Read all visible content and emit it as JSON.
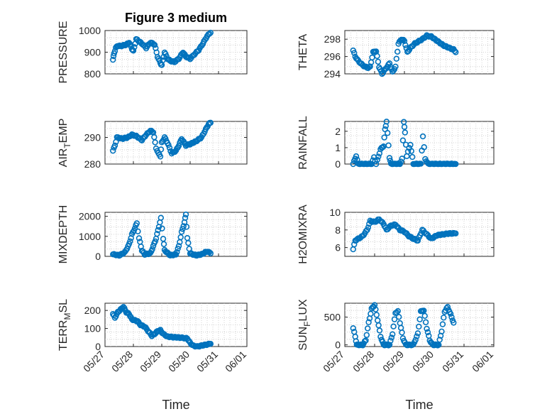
{
  "colors": {
    "marker": "#0072BD",
    "axis": "#262626",
    "grid": "#c8c8c8"
  },
  "chart_data": [
    {
      "type": "scatter",
      "title": "Figure 3 medium",
      "ylabel": "PRESSURE",
      "ylim": [
        800,
        1000
      ],
      "yticks": [
        "800",
        "900",
        "1000"
      ],
      "yticks_v": [
        800,
        900,
        1000
      ],
      "xlim": [
        0,
        5
      ],
      "xticks": [],
      "xlabel": "",
      "grid": true,
      "knots": [
        [
          0.28,
          865
        ],
        [
          0.32,
          895
        ],
        [
          0.38,
          920
        ],
        [
          0.45,
          930
        ],
        [
          0.55,
          928
        ],
        [
          0.75,
          935
        ],
        [
          0.85,
          945
        ],
        [
          0.95,
          915
        ],
        [
          1.0,
          905
        ],
        [
          1.1,
          960
        ],
        [
          1.3,
          940
        ],
        [
          1.45,
          920
        ],
        [
          1.6,
          945
        ],
        [
          1.75,
          935
        ],
        [
          1.85,
          880
        ],
        [
          1.95,
          850
        ],
        [
          2.0,
          840
        ],
        [
          2.1,
          900
        ],
        [
          2.2,
          870
        ],
        [
          2.3,
          860
        ],
        [
          2.45,
          855
        ],
        [
          2.6,
          870
        ],
        [
          2.75,
          900
        ],
        [
          2.85,
          880
        ],
        [
          3.0,
          870
        ],
        [
          3.15,
          890
        ],
        [
          3.3,
          910
        ],
        [
          3.45,
          940
        ],
        [
          3.6,
          975
        ],
        [
          3.72,
          990
        ]
      ]
    },
    {
      "type": "scatter",
      "title": "",
      "ylabel": "THETA",
      "ylim": [
        294,
        299
      ],
      "yticks": [
        "294",
        "296",
        "298"
      ],
      "yticks_v": [
        294,
        296,
        298
      ],
      "xlim": [
        0,
        5
      ],
      "xticks": [],
      "xlabel": "",
      "grid": true,
      "knots": [
        [
          0.28,
          296.7
        ],
        [
          0.35,
          296.0
        ],
        [
          0.45,
          295.5
        ],
        [
          0.6,
          295.0
        ],
        [
          0.75,
          294.7
        ],
        [
          0.85,
          294.8
        ],
        [
          0.95,
          296.5
        ],
        [
          1.05,
          296.6
        ],
        [
          1.15,
          294.8
        ],
        [
          1.25,
          294.0
        ],
        [
          1.35,
          294.5
        ],
        [
          1.5,
          295.2
        ],
        [
          1.6,
          294.2
        ],
        [
          1.7,
          294.8
        ],
        [
          1.8,
          297.5
        ],
        [
          1.9,
          298.0
        ],
        [
          2.0,
          297.8
        ],
        [
          2.1,
          296.5
        ],
        [
          2.2,
          297.0
        ],
        [
          2.35,
          297.5
        ],
        [
          2.6,
          298.0
        ],
        [
          2.75,
          298.4
        ],
        [
          2.9,
          298.3
        ],
        [
          3.1,
          297.8
        ],
        [
          3.3,
          297.3
        ],
        [
          3.5,
          297.0
        ],
        [
          3.65,
          296.8
        ],
        [
          3.72,
          296.5
        ]
      ]
    },
    {
      "type": "scatter",
      "title": "",
      "ylabel": "AIR_TEMP",
      "ylim": [
        280,
        296
      ],
      "yticks": [
        "280",
        "290"
      ],
      "yticks_v": [
        280,
        290
      ],
      "xlim": [
        0,
        5
      ],
      "xticks": [],
      "xlabel": "",
      "grid": true,
      "knots": [
        [
          0.28,
          285
        ],
        [
          0.35,
          287
        ],
        [
          0.42,
          290
        ],
        [
          0.6,
          289.5
        ],
        [
          0.8,
          290
        ],
        [
          0.95,
          291
        ],
        [
          1.1,
          290.5
        ],
        [
          1.3,
          289
        ],
        [
          1.45,
          291
        ],
        [
          1.6,
          292.5
        ],
        [
          1.7,
          292.0
        ],
        [
          1.8,
          286
        ],
        [
          1.88,
          284
        ],
        [
          1.95,
          283
        ],
        [
          2.0,
          288
        ],
        [
          2.1,
          290
        ],
        [
          2.2,
          288
        ],
        [
          2.35,
          284
        ],
        [
          2.5,
          285
        ],
        [
          2.6,
          287
        ],
        [
          2.7,
          289.5
        ],
        [
          2.85,
          287
        ],
        [
          3.0,
          287.5
        ],
        [
          3.2,
          288.5
        ],
        [
          3.4,
          290
        ],
        [
          3.55,
          293
        ],
        [
          3.65,
          295
        ],
        [
          3.72,
          295.5
        ]
      ]
    },
    {
      "type": "scatter",
      "title": "",
      "ylabel": "RAINFALL",
      "ylim": [
        0,
        2.6
      ],
      "yticks": [
        "0",
        "1",
        "2"
      ],
      "yticks_v": [
        0,
        1,
        2
      ],
      "xlim": [
        0,
        5
      ],
      "xticks": [],
      "xlabel": "",
      "grid": true,
      "knots": [
        [
          0.28,
          0
        ],
        [
          0.38,
          0.5
        ],
        [
          0.45,
          0
        ],
        [
          0.9,
          0
        ],
        [
          0.98,
          0.4
        ],
        [
          1.05,
          0
        ],
        [
          1.2,
          0.9
        ],
        [
          1.3,
          1.1
        ],
        [
          1.35,
          2.1
        ],
        [
          1.4,
          2.6
        ],
        [
          1.5,
          0.4
        ],
        [
          1.55,
          0
        ],
        [
          1.85,
          0
        ],
        [
          1.92,
          0.3
        ],
        [
          1.98,
          2.6
        ],
        [
          2.02,
          1.9
        ],
        [
          2.08,
          0.5
        ],
        [
          2.2,
          1.2
        ],
        [
          2.3,
          0
        ],
        [
          2.55,
          0
        ],
        [
          2.62,
          1.7
        ],
        [
          2.7,
          0.3
        ],
        [
          2.8,
          0
        ],
        [
          3.72,
          0
        ]
      ]
    },
    {
      "type": "scatter",
      "title": "",
      "ylabel": "MIXDEPTH",
      "ylim": [
        0,
        2200
      ],
      "yticks": [
        "0",
        "1000",
        "2000"
      ],
      "yticks_v": [
        0,
        1000,
        2000
      ],
      "xlim": [
        0,
        5
      ],
      "xticks": [],
      "xlabel": "",
      "grid": true,
      "knots": [
        [
          0.28,
          100
        ],
        [
          0.5,
          50
        ],
        [
          0.7,
          200
        ],
        [
          0.85,
          600
        ],
        [
          0.95,
          1100
        ],
        [
          1.05,
          1400
        ],
        [
          1.12,
          1650
        ],
        [
          1.2,
          900
        ],
        [
          1.3,
          300
        ],
        [
          1.4,
          100
        ],
        [
          1.6,
          150
        ],
        [
          1.7,
          500
        ],
        [
          1.8,
          900
        ],
        [
          1.9,
          1500
        ],
        [
          1.97,
          1900
        ],
        [
          2.05,
          900
        ],
        [
          2.1,
          300
        ],
        [
          2.3,
          50
        ],
        [
          2.5,
          100
        ],
        [
          2.6,
          500
        ],
        [
          2.7,
          1200
        ],
        [
          2.8,
          1700
        ],
        [
          2.85,
          2100
        ],
        [
          2.9,
          900
        ],
        [
          3.0,
          150
        ],
        [
          3.2,
          50
        ],
        [
          3.4,
          100
        ],
        [
          3.6,
          250
        ],
        [
          3.72,
          150
        ]
      ]
    },
    {
      "type": "scatter",
      "title": "",
      "ylabel": "H2OMIXRA",
      "ylim": [
        5,
        10
      ],
      "yticks": [
        "6",
        "8",
        "10"
      ],
      "yticks_v": [
        6,
        8,
        10
      ],
      "xlim": [
        0,
        5
      ],
      "xticks": [],
      "xlabel": "",
      "grid": true,
      "knots": [
        [
          0.28,
          5.8
        ],
        [
          0.35,
          6.8
        ],
        [
          0.45,
          7.0
        ],
        [
          0.6,
          7.3
        ],
        [
          0.75,
          8.0
        ],
        [
          0.85,
          9.0
        ],
        [
          1.0,
          8.9
        ],
        [
          1.15,
          9.2
        ],
        [
          1.3,
          8.7
        ],
        [
          1.4,
          8.0
        ],
        [
          1.55,
          8.5
        ],
        [
          1.7,
          8.6
        ],
        [
          1.85,
          8.0
        ],
        [
          2.0,
          7.8
        ],
        [
          2.15,
          7.3
        ],
        [
          2.3,
          7.0
        ],
        [
          2.45,
          6.8
        ],
        [
          2.6,
          8.0
        ],
        [
          2.75,
          7.5
        ],
        [
          2.9,
          7.0
        ],
        [
          3.1,
          7.4
        ],
        [
          3.3,
          7.5
        ],
        [
          3.5,
          7.6
        ],
        [
          3.72,
          7.6
        ]
      ]
    },
    {
      "type": "scatter",
      "title": "",
      "ylabel": "TERR_MSL",
      "ylim": [
        0,
        240
      ],
      "yticks": [
        "0",
        "100",
        "200"
      ],
      "yticks_v": [
        0,
        100,
        200
      ],
      "xlim": [
        0,
        5
      ],
      "xticks": [
        "05/27",
        "05/28",
        "05/29",
        "05/30",
        "05/31",
        "06/01"
      ],
      "xticks_v": [
        0,
        1,
        2,
        3,
        4,
        5
      ],
      "xlabel": "Time",
      "grid": true,
      "knots": [
        [
          0.28,
          180
        ],
        [
          0.35,
          160
        ],
        [
          0.45,
          190
        ],
        [
          0.55,
          205
        ],
        [
          0.65,
          220
        ],
        [
          0.75,
          190
        ],
        [
          0.85,
          180
        ],
        [
          0.95,
          150
        ],
        [
          1.05,
          145
        ],
        [
          1.15,
          140
        ],
        [
          1.25,
          120
        ],
        [
          1.4,
          110
        ],
        [
          1.55,
          80
        ],
        [
          1.65,
          60
        ],
        [
          1.75,
          70
        ],
        [
          1.85,
          85
        ],
        [
          1.95,
          90
        ],
        [
          2.05,
          70
        ],
        [
          2.2,
          55
        ],
        [
          2.4,
          52
        ],
        [
          2.6,
          50
        ],
        [
          2.75,
          48
        ],
        [
          2.9,
          45
        ],
        [
          3.0,
          20
        ],
        [
          3.1,
          5
        ],
        [
          3.25,
          0
        ],
        [
          3.4,
          5
        ],
        [
          3.55,
          10
        ],
        [
          3.72,
          15
        ]
      ]
    },
    {
      "type": "scatter",
      "title": "",
      "ylabel": "SUN_FLUX",
      "ylim": [
        -30,
        750
      ],
      "yticks": [
        "0",
        "500"
      ],
      "yticks_v": [
        0,
        500
      ],
      "xlim": [
        0,
        5
      ],
      "xticks": [
        "05/27",
        "05/28",
        "05/29",
        "05/30",
        "05/31",
        "06/01"
      ],
      "xticks_v": [
        0,
        1,
        2,
        3,
        4,
        5
      ],
      "xlabel": "Time",
      "grid": true,
      "knots": [
        [
          0.28,
          300
        ],
        [
          0.35,
          150
        ],
        [
          0.4,
          0
        ],
        [
          0.6,
          0
        ],
        [
          0.7,
          80
        ],
        [
          0.8,
          400
        ],
        [
          0.9,
          650
        ],
        [
          1.0,
          720
        ],
        [
          1.1,
          450
        ],
        [
          1.2,
          150
        ],
        [
          1.3,
          0
        ],
        [
          1.5,
          0
        ],
        [
          1.6,
          200
        ],
        [
          1.7,
          580
        ],
        [
          1.78,
          600
        ],
        [
          1.85,
          400
        ],
        [
          1.95,
          120
        ],
        [
          2.05,
          0
        ],
        [
          2.3,
          0
        ],
        [
          2.45,
          200
        ],
        [
          2.55,
          600
        ],
        [
          2.65,
          620
        ],
        [
          2.75,
          300
        ],
        [
          2.85,
          80
        ],
        [
          2.95,
          0
        ],
        [
          3.15,
          0
        ],
        [
          3.25,
          250
        ],
        [
          3.35,
          600
        ],
        [
          3.45,
          680
        ],
        [
          3.55,
          550
        ],
        [
          3.65,
          400
        ]
      ]
    }
  ]
}
